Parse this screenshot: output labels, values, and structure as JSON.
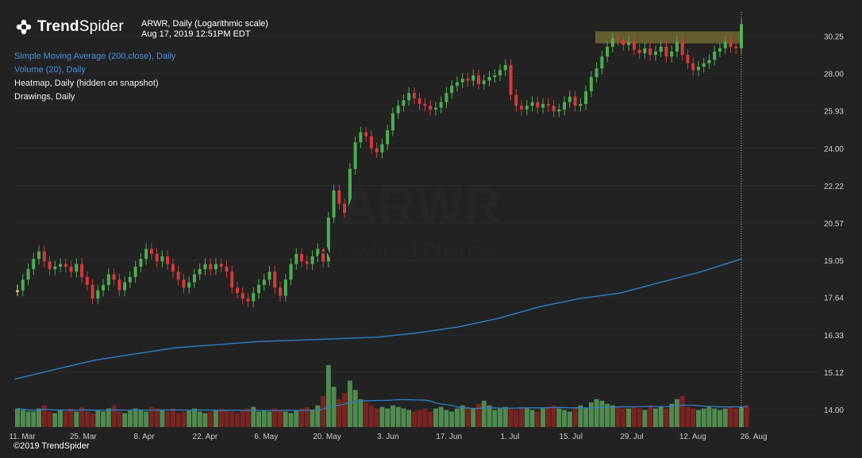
{
  "brand": {
    "name_bold": "Trend",
    "name_light": "Spider",
    "copyright": "©2019 TrendSpider"
  },
  "header": {
    "line1": "ARWR, Daily (Logarithmic scale)",
    "line2": "Aug 17, 2019 12:51PM EDT"
  },
  "indicators": [
    {
      "label": "Simple Moving Average (200,close), Daily",
      "color": "#4a90d9"
    },
    {
      "label": "Volume (20), Daily",
      "color": "#4a90d9"
    },
    {
      "label": "Heatmap, Daily (hidden on snapshot)",
      "color": "#f0f0f0"
    },
    {
      "label": "Drawings, Daily",
      "color": "#f0f0f0"
    }
  ],
  "watermark": {
    "ticker": "ARWR",
    "company": "Arrowhead Pharma"
  },
  "colors": {
    "up": "#4caf50",
    "down": "#d43a3a",
    "neutral": "#e8d36a",
    "sma": "#2f7fc1",
    "vol_up": "#4f8a4f",
    "vol_down": "#7a2322",
    "zone": "#6b6432",
    "grid": "#2c2c2d"
  },
  "chart_data": {
    "type": "line",
    "scale": "log",
    "ylim": [
      13.5,
      31.8
    ],
    "y_ticks": [
      "30.25",
      "28.00",
      "25.93",
      "24.00",
      "22.22",
      "20.57",
      "19.05",
      "17.64",
      "16.33",
      "15.12",
      "14.00"
    ],
    "x_ticks": [
      "11. Mar",
      "25. Mar",
      "8. Apr",
      "22. Apr",
      "6. May",
      "20. May",
      "3. Jun",
      "17. Jun",
      "1. Jul",
      "15. Jul",
      "29. Jul",
      "12. Aug",
      "26. Aug"
    ],
    "series": [
      {
        "name": "Price",
        "values": [
          17.9,
          18.3,
          18.7,
          19.1,
          19.4,
          19.0,
          18.7,
          18.8,
          18.9,
          18.8,
          18.6,
          18.9,
          18.4,
          18.1,
          17.6,
          17.9,
          18.1,
          18.5,
          18.3,
          17.9,
          18.2,
          18.4,
          18.8,
          19.1,
          19.5,
          19.3,
          19.0,
          19.2,
          18.9,
          18.6,
          18.3,
          18.0,
          18.2,
          18.5,
          18.7,
          18.9,
          18.7,
          18.9,
          18.8,
          18.6,
          18.0,
          17.8,
          17.6,
          17.5,
          17.8,
          18.1,
          18.3,
          18.6,
          18.0,
          17.7,
          18.3,
          18.9,
          19.3,
          19.0,
          18.9,
          19.2,
          19.5,
          19.0,
          20.8,
          22.0,
          21.4,
          21.0,
          23.0,
          24.3,
          24.8,
          24.6,
          24.0,
          23.8,
          24.2,
          24.9,
          25.8,
          26.2,
          26.5,
          26.9,
          26.6,
          26.3,
          26.2,
          26.0,
          26.1,
          26.4,
          26.9,
          27.3,
          27.5,
          27.7,
          27.6,
          27.9,
          27.4,
          27.6,
          27.8,
          27.9,
          28.2,
          28.5,
          26.8,
          26.2,
          26.0,
          26.2,
          26.4,
          26.1,
          26.3,
          26.2,
          25.9,
          26.0,
          26.4,
          26.7,
          26.2,
          26.3,
          27.0,
          27.8,
          28.3,
          29.0,
          29.6,
          30.1,
          30.0,
          29.7,
          29.9,
          29.4,
          29.2,
          29.5,
          29.1,
          29.3,
          29.6,
          29.0,
          29.3,
          29.9,
          29.1,
          28.6,
          28.2,
          28.4,
          28.6,
          28.8,
          29.3,
          29.5,
          29.9,
          29.6,
          29.5,
          31.0
        ]
      },
      {
        "name": "Simple Moving Average (200,close), Daily",
        "values": [
          14.9,
          15.2,
          15.5,
          15.7,
          15.9,
          16.0,
          16.1,
          16.15,
          16.2,
          16.25,
          16.4,
          16.6,
          16.9,
          17.3,
          17.6,
          17.8,
          18.2,
          18.6,
          19.1
        ]
      }
    ],
    "volume": [
      12,
      11,
      10,
      10,
      12,
      14,
      10,
      9,
      11,
      10,
      12,
      10,
      13,
      10,
      9,
      11,
      10,
      12,
      14,
      10,
      9,
      11,
      12,
      11,
      10,
      13,
      12,
      11,
      10,
      12,
      9,
      10,
      11,
      12,
      10,
      9,
      10,
      11,
      12,
      11,
      10,
      9,
      11,
      12,
      13,
      10,
      11,
      10,
      12,
      11,
      10,
      9,
      11,
      12,
      13,
      11,
      14,
      20,
      40,
      26,
      18,
      22,
      30,
      24,
      18,
      16,
      14,
      12,
      13,
      12,
      14,
      13,
      12,
      11,
      10,
      11,
      12,
      10,
      12,
      13,
      11,
      10,
      12,
      14,
      13,
      12,
      15,
      17,
      14,
      11,
      12,
      13,
      12,
      11,
      13,
      12,
      11,
      10,
      12,
      13,
      14,
      12,
      11,
      10,
      13,
      14,
      12,
      16,
      18,
      17,
      15,
      14,
      13,
      12,
      12,
      13,
      12,
      11,
      14,
      12,
      13,
      12,
      15,
      18,
      20,
      13,
      12,
      11,
      12,
      13,
      12,
      11,
      12,
      13,
      12,
      13,
      14
    ],
    "resistance_zone": [
      29.8,
      30.55
    ]
  }
}
